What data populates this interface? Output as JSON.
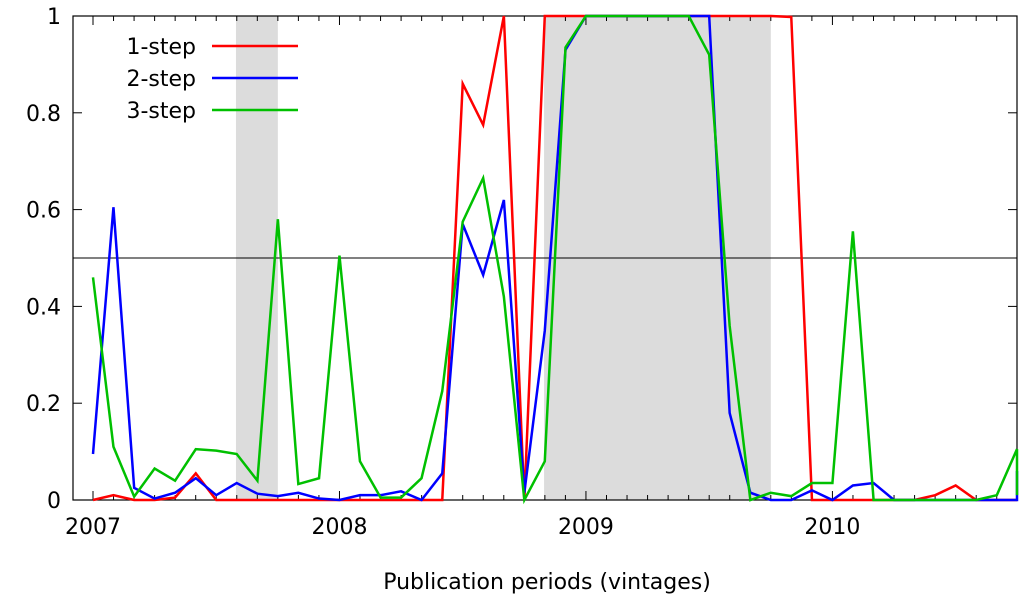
{
  "chart_data": {
    "type": "line",
    "title": "",
    "xlabel": "Publication periods (vintages)",
    "ylabel": "",
    "xlim": [
      2007,
      2010.83
    ],
    "ylim": [
      0,
      1
    ],
    "x_ticks": [
      "2007",
      "2008",
      "2009",
      "2010"
    ],
    "y_ticks": [
      "0",
      "0.2",
      "0.4",
      "0.6",
      "0.8",
      "1"
    ],
    "grid": false,
    "legend_position": "top-left",
    "threshold": 0.5,
    "shaded_periods": [
      [
        2007.58,
        2007.75
      ],
      [
        2008.83,
        2009.75
      ]
    ],
    "x": [
      2007.0,
      2007.083,
      2007.167,
      2007.25,
      2007.333,
      2007.417,
      2007.5,
      2007.583,
      2007.667,
      2007.75,
      2007.833,
      2007.917,
      2008.0,
      2008.083,
      2008.167,
      2008.25,
      2008.333,
      2008.417,
      2008.5,
      2008.583,
      2008.667,
      2008.75,
      2008.833,
      2008.917,
      2009.0,
      2009.083,
      2009.167,
      2009.25,
      2009.333,
      2009.417,
      2009.5,
      2009.583,
      2009.667,
      2009.75,
      2009.833,
      2009.917,
      2010.0,
      2010.083,
      2010.167,
      2010.25,
      2010.333,
      2010.417,
      2010.5,
      2010.583,
      2010.667,
      2010.75,
      2010.833
    ],
    "series": [
      {
        "name": "1-step",
        "color": "#ff0000",
        "values": [
          0,
          0.01,
          0,
          0,
          0.005,
          0.055,
          0,
          0,
          0,
          0,
          0,
          0,
          0,
          0,
          0,
          0,
          0,
          0,
          0.86,
          0.775,
          1,
          0,
          1,
          1,
          1,
          1,
          1,
          1,
          1,
          1,
          1,
          1,
          1,
          1,
          0.998,
          0,
          0,
          0,
          0,
          0,
          0,
          0.01,
          0.03,
          0,
          0,
          0,
          0
        ]
      },
      {
        "name": "2-step",
        "color": "#0000ff",
        "values": [
          0.095,
          0.605,
          0.025,
          0.003,
          0.015,
          0.045,
          0.01,
          0.035,
          0.013,
          0.008,
          0.015,
          0.003,
          0,
          0.01,
          0.01,
          0.018,
          0,
          0.055,
          0.57,
          0.465,
          0.62,
          0.015,
          0.35,
          0.93,
          1,
          1,
          1,
          1,
          1,
          1,
          1,
          0.18,
          0.015,
          0,
          0,
          0.02,
          0,
          0.03,
          0.035,
          0,
          0,
          0,
          0,
          0,
          0,
          0,
          0.06
        ]
      },
      {
        "name": "3-step",
        "color": "#00c000",
        "values": [
          0.46,
          0.11,
          0.007,
          0.065,
          0.04,
          0.105,
          0.102,
          0.095,
          0.04,
          0.58,
          0.033,
          0.045,
          0.505,
          0.08,
          0.005,
          0.005,
          0.045,
          0.225,
          0.575,
          0.665,
          0.42,
          0,
          0.08,
          0.935,
          1,
          1,
          1,
          1,
          1,
          1,
          0.92,
          0.36,
          0,
          0.015,
          0.008,
          0.035,
          0.035,
          0.555,
          0,
          0,
          0,
          0,
          0,
          0,
          0.01,
          0.105,
          0.01
        ]
      }
    ]
  }
}
